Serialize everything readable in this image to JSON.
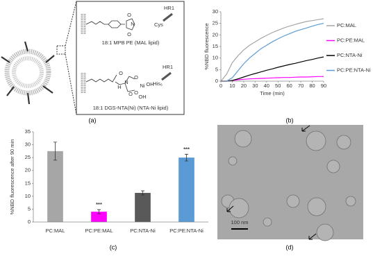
{
  "panel_labels": [
    "(a)",
    "(b)",
    "(c)",
    "(d)"
  ],
  "diagram": {
    "mal": {
      "protein": "HR1",
      "residue": "Cys",
      "lipid": "18:1 MPB PE (MAL lipid)",
      "atoms": [
        "O",
        "N",
        "O"
      ]
    },
    "nta": {
      "protein": "HR1",
      "residue": "His₆",
      "lipid": "18:1 DGS-NTA(Ni) (NTA-Ni lipid)",
      "atoms": [
        "H",
        "N",
        "O",
        "O",
        "O",
        "O",
        "Ni",
        "OH",
        "OH"
      ]
    }
  },
  "micrograph": {
    "scale_bar": "100 nm"
  },
  "chart_data": [
    {
      "type": "line",
      "ylabel": "%NBD fluorescence",
      "xlabel": "Time (min)",
      "legend": "right",
      "x": [
        0,
        5,
        10,
        15,
        20,
        25,
        30,
        35,
        40,
        45,
        50,
        55,
        60,
        65,
        70,
        75,
        80,
        85,
        90
      ],
      "xlim": [
        0,
        90
      ],
      "xticks": [
        0,
        10,
        20,
        30,
        40,
        50,
        60,
        70,
        80,
        90
      ],
      "ylim": [
        0,
        30
      ],
      "yticks": [
        0,
        5,
        10,
        15,
        20,
        25,
        30
      ],
      "series": [
        {
          "name": "PC:MAL",
          "color": "#a6a6a6",
          "values": [
            0,
            3,
            8,
            11,
            13.5,
            15.5,
            17,
            18.5,
            19.8,
            21,
            22,
            23,
            23.8,
            24.5,
            25.2,
            25.8,
            26.2,
            26.6,
            27
          ]
        },
        {
          "name": "PC:PE:MAL",
          "color": "#ff00ff",
          "values": [
            0,
            0,
            0.3,
            0.6,
            0.8,
            1,
            1.1,
            1.2,
            1.3,
            1.4,
            1.5,
            1.6,
            1.6,
            1.7,
            1.8,
            1.8,
            1.9,
            2,
            2
          ]
        },
        {
          "name": "PC:NTA-Ni",
          "color": "#000000",
          "values": [
            0,
            0,
            0.3,
            1,
            1.8,
            2.6,
            3.3,
            4,
            4.7,
            5.3,
            6,
            6.6,
            7.2,
            7.7,
            8.3,
            8.9,
            9.4,
            10,
            10.5
          ]
        },
        {
          "name": "PC:PE:NTA-Ni",
          "color": "#5b9bd5",
          "values": [
            0,
            0,
            1.5,
            4.5,
            7.5,
            10,
            12,
            14,
            15.5,
            17,
            18.3,
            19.5,
            20.5,
            21.5,
            22.3,
            23,
            23.8,
            24.5,
            25
          ]
        }
      ]
    },
    {
      "type": "bar",
      "ylabel": "%NBD fluorescence after 90 min",
      "categories": [
        "PC:MAL",
        "PC:PE:MAL",
        "PC:NTA-Ni",
        "PC:PE:NTA-Ni"
      ],
      "values": [
        27.5,
        4,
        11.3,
        25
      ],
      "errors": [
        3.5,
        0.8,
        0.8,
        1.3
      ],
      "colors": [
        "#a6a6a6",
        "#ff00ff",
        "#595959",
        "#5b9bd5"
      ],
      "significance": [
        null,
        "***",
        null,
        "***"
      ],
      "ylim": [
        0,
        35
      ],
      "yticks": [
        0,
        5,
        10,
        15,
        20,
        25,
        30,
        35
      ]
    }
  ]
}
